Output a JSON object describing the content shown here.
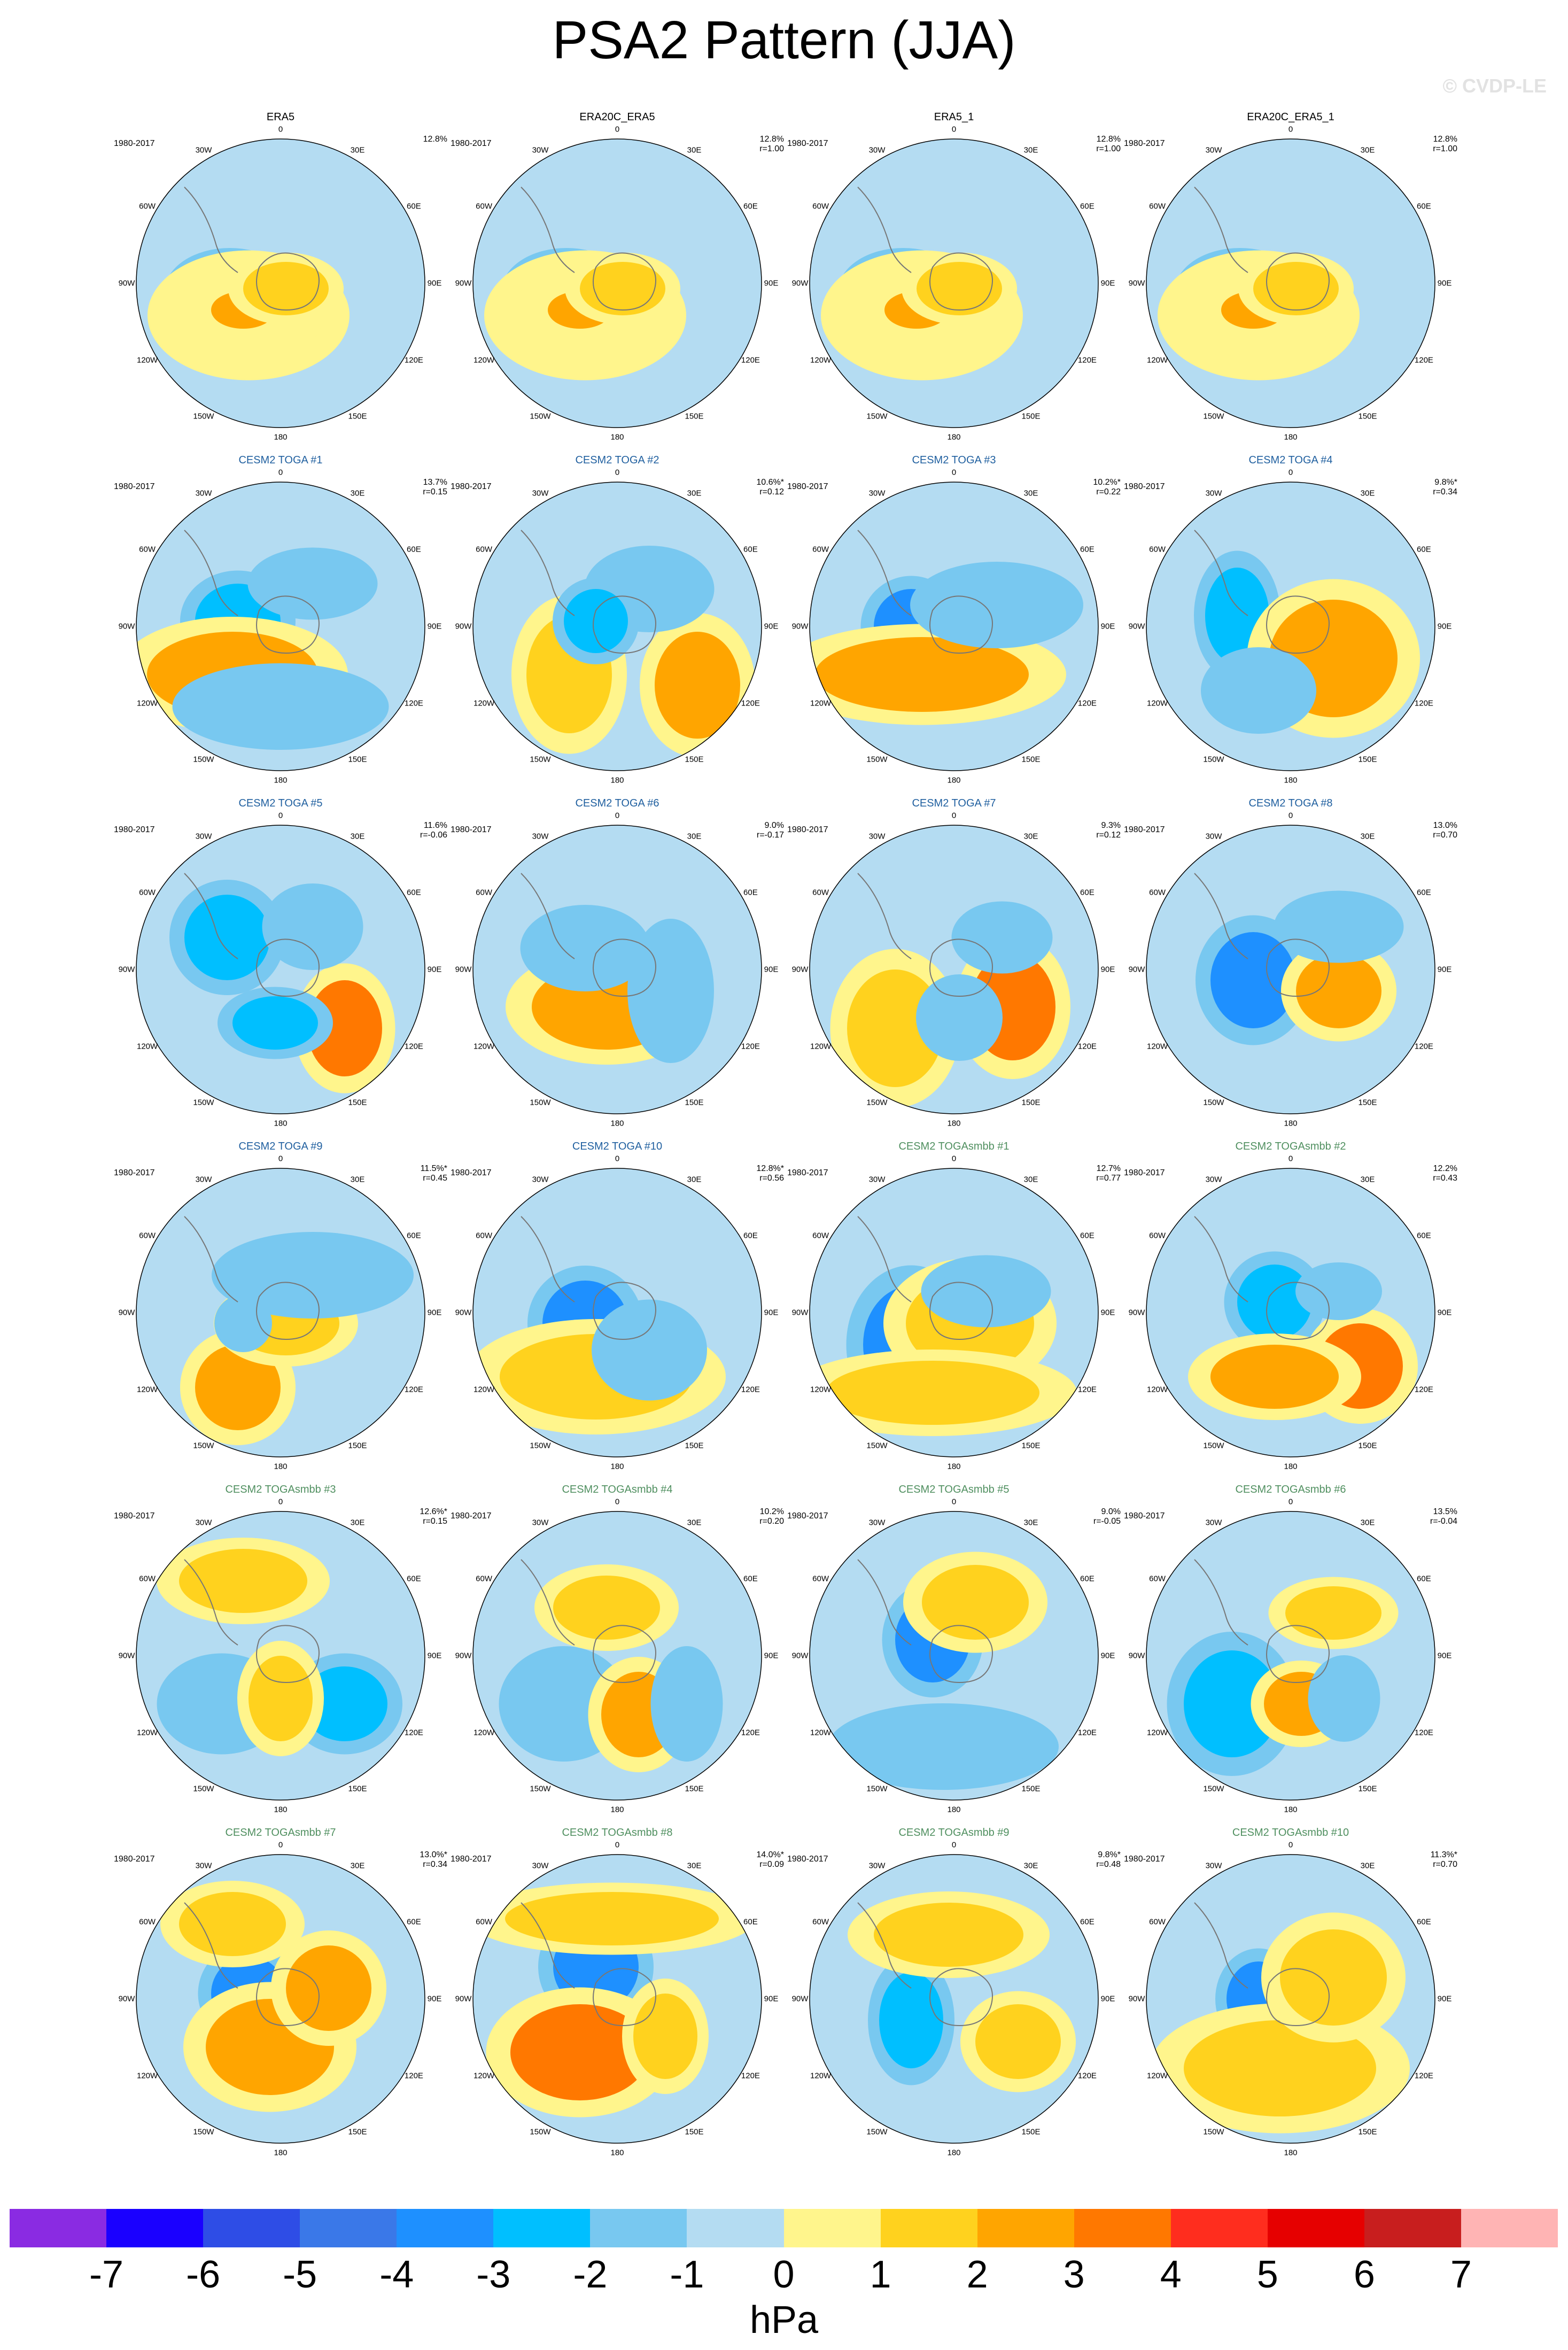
{
  "figure": {
    "title": "PSA2 Pattern (JJA)",
    "watermark": "© CVDP-LE",
    "period": "1980-2017",
    "units": "hPa",
    "longitude_labels": [
      "0",
      "30E",
      "60E",
      "90E",
      "120E",
      "150E",
      "180",
      "150W",
      "120W",
      "90W",
      "60W",
      "30W"
    ]
  },
  "panels": [
    {
      "title": "ERA5",
      "title_color": "#000000",
      "pct": "12.8%",
      "r": ""
    },
    {
      "title": "ERA20C_ERA5",
      "title_color": "#000000",
      "pct": "12.8%",
      "r": "r=1.00"
    },
    {
      "title": "ERA5_1",
      "title_color": "#000000",
      "pct": "12.8%",
      "r": "r=1.00"
    },
    {
      "title": "ERA20C_ERA5_1",
      "title_color": "#000000",
      "pct": "12.8%",
      "r": "r=1.00"
    },
    {
      "title": "CESM2 TOGA #1",
      "title_color": "#1f5f9f",
      "pct": "13.7%",
      "r": "r=0.15"
    },
    {
      "title": "CESM2 TOGA #2",
      "title_color": "#1f5f9f",
      "pct": "10.6%*",
      "r": "r=0.12"
    },
    {
      "title": "CESM2 TOGA #3",
      "title_color": "#1f5f9f",
      "pct": "10.2%*",
      "r": "r=0.22"
    },
    {
      "title": "CESM2 TOGA #4",
      "title_color": "#1f5f9f",
      "pct": "9.8%*",
      "r": "r=0.34"
    },
    {
      "title": "CESM2 TOGA #5",
      "title_color": "#1f5f9f",
      "pct": "11.6%",
      "r": "r=-0.06"
    },
    {
      "title": "CESM2 TOGA #6",
      "title_color": "#1f5f9f",
      "pct": "9.0%",
      "r": "r=-0.17"
    },
    {
      "title": "CESM2 TOGA #7",
      "title_color": "#1f5f9f",
      "pct": "9.3%",
      "r": "r=0.12"
    },
    {
      "title": "CESM2 TOGA #8",
      "title_color": "#1f5f9f",
      "pct": "13.0%",
      "r": "r=0.70"
    },
    {
      "title": "CESM2 TOGA #9",
      "title_color": "#1f5f9f",
      "pct": "11.5%*",
      "r": "r=0.45"
    },
    {
      "title": "CESM2 TOGA #10",
      "title_color": "#1f5f9f",
      "pct": "12.8%*",
      "r": "r=0.56"
    },
    {
      "title": "CESM2 TOGAsmbb #1",
      "title_color": "#4f8f5f",
      "pct": "12.7%",
      "r": "r=0.77"
    },
    {
      "title": "CESM2 TOGAsmbb #2",
      "title_color": "#4f8f5f",
      "pct": "12.2%",
      "r": "r=0.43"
    },
    {
      "title": "CESM2 TOGAsmbb #3",
      "title_color": "#4f8f5f",
      "pct": "12.6%*",
      "r": "r=0.15"
    },
    {
      "title": "CESM2 TOGAsmbb #4",
      "title_color": "#4f8f5f",
      "pct": "10.2%",
      "r": "r=0.20"
    },
    {
      "title": "CESM2 TOGAsmbb #5",
      "title_color": "#4f8f5f",
      "pct": "9.0%",
      "r": "r=-0.05"
    },
    {
      "title": "CESM2 TOGAsmbb #6",
      "title_color": "#4f8f5f",
      "pct": "13.5%",
      "r": "r=-0.04"
    },
    {
      "title": "CESM2 TOGAsmbb #7",
      "title_color": "#4f8f5f",
      "pct": "13.0%*",
      "r": "r=0.34"
    },
    {
      "title": "CESM2 TOGAsmbb #8",
      "title_color": "#4f8f5f",
      "pct": "14.0%*",
      "r": "r=0.09"
    },
    {
      "title": "CESM2 TOGAsmbb #9",
      "title_color": "#4f8f5f",
      "pct": "9.8%*",
      "r": "r=0.48"
    },
    {
      "title": "CESM2 TOGAsmbb #10",
      "title_color": "#4f8f5f",
      "pct": "11.3%*",
      "r": "r=0.70"
    }
  ],
  "colorbar": {
    "colors": [
      "#8a2be2",
      "#1a00ff",
      "#2e4de6",
      "#3a78e8",
      "#1e90ff",
      "#00bfff",
      "#78c8f0",
      "#b4dcf2",
      "#fff58c",
      "#ffd21e",
      "#ffa500",
      "#ff7800",
      "#ff2d1e",
      "#e60000",
      "#c81e1e",
      "#ffb4b4"
    ],
    "ticks": [
      "-7",
      "-6",
      "-5",
      "-4",
      "-3",
      "-2",
      "-1",
      "0",
      "1",
      "2",
      "3",
      "4",
      "5",
      "6",
      "7"
    ]
  }
}
